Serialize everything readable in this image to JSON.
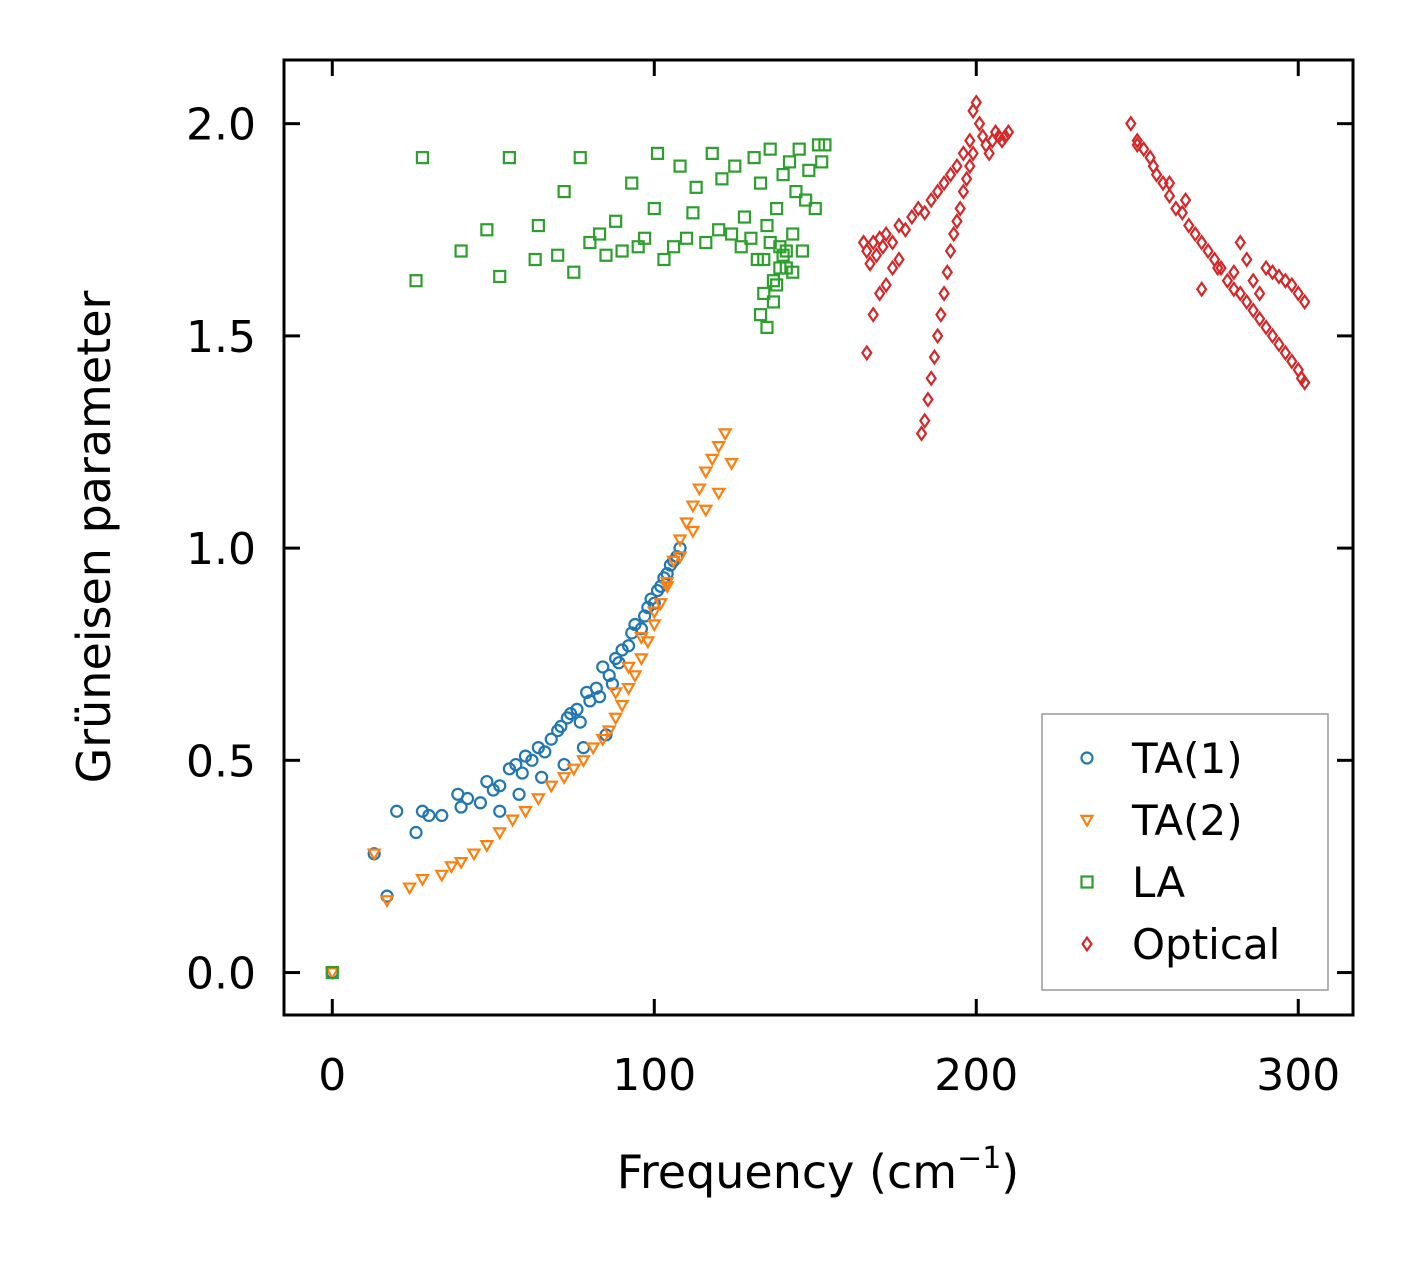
{
  "chart_data": {
    "type": "scatter",
    "title": "",
    "xlabel": "Frequency (cm",
    "xlabel_sup": "−1",
    "xlabel_end": ")",
    "ylabel": "Grüneisen parameter",
    "xlim": [
      -15,
      317
    ],
    "ylim": [
      -0.1,
      2.15
    ],
    "xticks": [
      0,
      100,
      200,
      300
    ],
    "xtick_labels": [
      "0",
      "100",
      "200",
      "300"
    ],
    "yticks": [
      0.0,
      0.5,
      1.0,
      1.5,
      2.0
    ],
    "ytick_labels": [
      "0.0",
      "0.5",
      "1.0",
      "1.5",
      "2.0"
    ],
    "grid": false,
    "legend_position": "lower-right",
    "series": [
      {
        "name": "TA(1)",
        "marker": "circle",
        "color": "#1f77b4",
        "x": [
          0,
          13,
          17,
          20,
          26,
          28,
          30,
          34,
          39,
          40,
          42,
          46,
          48,
          50,
          52,
          55,
          57,
          59,
          60,
          62,
          64,
          66,
          68,
          70,
          71,
          73,
          74,
          76,
          77,
          79,
          80,
          82,
          83,
          84,
          86,
          87,
          88,
          89,
          90,
          92,
          93,
          94,
          96,
          97,
          98,
          99,
          100,
          101,
          102,
          103,
          104,
          105,
          106,
          107,
          108,
          52,
          58,
          65,
          72,
          78,
          85
        ],
        "y": [
          0.0,
          0.28,
          0.18,
          0.38,
          0.33,
          0.38,
          0.37,
          0.37,
          0.42,
          0.39,
          0.41,
          0.4,
          0.45,
          0.43,
          0.44,
          0.48,
          0.49,
          0.47,
          0.51,
          0.5,
          0.53,
          0.52,
          0.55,
          0.57,
          0.58,
          0.6,
          0.61,
          0.62,
          0.59,
          0.66,
          0.64,
          0.67,
          0.65,
          0.72,
          0.7,
          0.68,
          0.74,
          0.73,
          0.76,
          0.77,
          0.8,
          0.82,
          0.81,
          0.84,
          0.86,
          0.88,
          0.87,
          0.9,
          0.91,
          0.93,
          0.94,
          0.96,
          0.97,
          0.98,
          1.0,
          0.38,
          0.42,
          0.46,
          0.49,
          0.53,
          0.56
        ]
      },
      {
        "name": "TA(2)",
        "marker": "triangle-down",
        "color": "#ff7f0e",
        "x": [
          0,
          13,
          17,
          24,
          28,
          34,
          37,
          40,
          44,
          48,
          52,
          56,
          60,
          64,
          68,
          72,
          75,
          78,
          81,
          84,
          86,
          88,
          90,
          92,
          94,
          96,
          98,
          100,
          102,
          104,
          106,
          108,
          110,
          112,
          114,
          116,
          118,
          120,
          122,
          124,
          88,
          92,
          96,
          100,
          104,
          108,
          112,
          116,
          120
        ],
        "y": [
          0.0,
          0.28,
          0.17,
          0.2,
          0.22,
          0.23,
          0.25,
          0.26,
          0.28,
          0.3,
          0.33,
          0.36,
          0.38,
          0.41,
          0.44,
          0.46,
          0.48,
          0.5,
          0.53,
          0.55,
          0.57,
          0.6,
          0.63,
          0.67,
          0.7,
          0.74,
          0.78,
          0.82,
          0.87,
          0.92,
          0.97,
          1.02,
          1.06,
          1.1,
          1.14,
          1.18,
          1.21,
          1.24,
          1.27,
          1.2,
          0.66,
          0.72,
          0.79,
          0.85,
          0.91,
          0.98,
          1.04,
          1.09,
          1.13
        ]
      },
      {
        "name": "LA",
        "marker": "square",
        "color": "#2ca02c",
        "x": [
          0,
          26,
          28,
          40,
          48,
          52,
          55,
          63,
          64,
          70,
          72,
          75,
          77,
          80,
          83,
          85,
          88,
          90,
          93,
          95,
          97,
          100,
          101,
          103,
          106,
          108,
          110,
          112,
          113,
          116,
          118,
          120,
          121,
          124,
          125,
          127,
          128,
          130,
          131,
          132,
          133,
          134,
          135,
          136,
          137,
          138,
          139,
          140,
          141,
          142,
          143,
          144,
          145,
          146,
          147,
          148,
          150,
          151,
          152,
          153,
          133,
          135,
          137,
          139,
          141,
          143,
          134,
          136,
          138,
          140
        ],
        "y": [
          0.0,
          1.63,
          1.92,
          1.7,
          1.75,
          1.64,
          1.92,
          1.68,
          1.76,
          1.69,
          1.84,
          1.65,
          1.92,
          1.72,
          1.74,
          1.69,
          1.77,
          1.7,
          1.86,
          1.71,
          1.73,
          1.8,
          1.93,
          1.68,
          1.71,
          1.9,
          1.73,
          1.79,
          1.85,
          1.72,
          1.93,
          1.75,
          1.87,
          1.74,
          1.9,
          1.71,
          1.78,
          1.73,
          1.92,
          1.68,
          1.86,
          1.6,
          1.76,
          1.94,
          1.63,
          1.8,
          1.71,
          1.88,
          1.66,
          1.91,
          1.74,
          1.84,
          1.94,
          1.7,
          1.82,
          1.89,
          1.8,
          1.95,
          1.91,
          1.95,
          1.55,
          1.52,
          1.58,
          1.66,
          1.7,
          1.65,
          1.68,
          1.72,
          1.62,
          1.69
        ]
      },
      {
        "name": "Optical",
        "marker": "diamond",
        "color": "#d62728",
        "x": [
          165,
          166,
          167,
          168,
          169,
          170,
          171,
          172,
          174,
          176,
          178,
          180,
          182,
          184,
          186,
          188,
          190,
          192,
          194,
          196,
          198,
          199,
          200,
          201,
          202,
          203,
          204,
          205,
          206,
          207,
          208,
          209,
          210,
          183,
          184,
          185,
          186,
          187,
          188,
          189,
          190,
          191,
          192,
          193,
          194,
          195,
          196,
          197,
          198,
          199,
          166,
          168,
          170,
          172,
          174,
          176,
          248,
          250,
          252,
          254,
          256,
          258,
          260,
          262,
          264,
          266,
          268,
          270,
          272,
          274,
          276,
          278,
          280,
          282,
          284,
          286,
          288,
          290,
          292,
          294,
          296,
          298,
          300,
          301,
          302,
          302,
          300,
          298,
          296,
          294,
          292,
          290,
          288,
          286,
          284,
          282,
          270,
          275,
          280,
          250,
          255,
          260,
          265
        ],
        "y": [
          1.72,
          1.7,
          1.67,
          1.72,
          1.69,
          1.73,
          1.71,
          1.74,
          1.72,
          1.76,
          1.75,
          1.78,
          1.8,
          1.79,
          1.82,
          1.84,
          1.86,
          1.88,
          1.9,
          1.93,
          1.96,
          2.03,
          2.05,
          2.0,
          1.97,
          1.95,
          1.93,
          1.96,
          1.98,
          1.97,
          1.96,
          1.97,
          1.98,
          1.27,
          1.3,
          1.35,
          1.4,
          1.45,
          1.5,
          1.55,
          1.6,
          1.65,
          1.7,
          1.74,
          1.77,
          1.8,
          1.84,
          1.87,
          1.9,
          1.93,
          1.46,
          1.55,
          1.6,
          1.62,
          1.66,
          1.68,
          2.0,
          1.96,
          1.94,
          1.92,
          1.88,
          1.86,
          1.83,
          1.8,
          1.79,
          1.76,
          1.74,
          1.72,
          1.7,
          1.68,
          1.66,
          1.63,
          1.61,
          1.6,
          1.58,
          1.56,
          1.54,
          1.52,
          1.5,
          1.48,
          1.46,
          1.44,
          1.42,
          1.4,
          1.39,
          1.58,
          1.6,
          1.62,
          1.63,
          1.64,
          1.65,
          1.66,
          1.6,
          1.63,
          1.68,
          1.72,
          1.61,
          1.66,
          1.65,
          1.95,
          1.9,
          1.86,
          1.82
        ]
      }
    ]
  }
}
